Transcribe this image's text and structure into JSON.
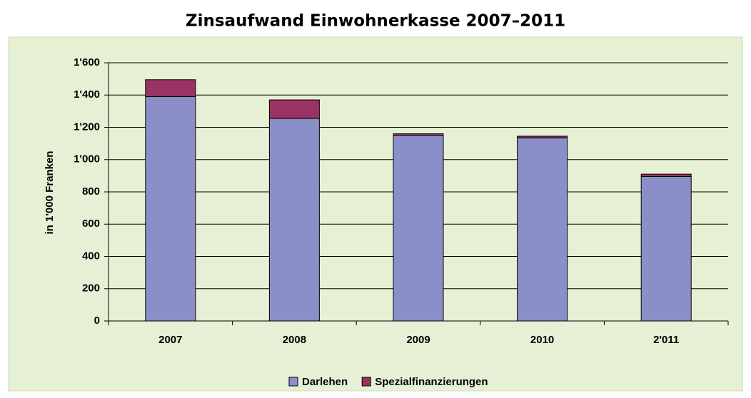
{
  "chart_data": {
    "type": "stacked_bar",
    "title": "Zinsaufwand Einwohnerkasse 2007–2011",
    "y_label": "in 1'000 Franken",
    "categories": [
      "2007",
      "2008",
      "2009",
      "2010",
      "2'011"
    ],
    "series": [
      {
        "name": "Darlehen",
        "color": "#8b8fc8",
        "values": [
          1390,
          1255,
          1150,
          1135,
          895
        ]
      },
      {
        "name": "Spezialfinanzierungen",
        "color": "#993366",
        "values": [
          105,
          115,
          10,
          10,
          15
        ]
      }
    ],
    "ylim": [
      0,
      1600
    ],
    "yticks": [
      0,
      200,
      400,
      600,
      800,
      {
        "value": 1000,
        "label": "1'000"
      },
      {
        "value": 1200,
        "label": "1'200"
      },
      {
        "value": 1400,
        "label": "1'400"
      },
      {
        "value": 1600,
        "label": "1'600"
      }
    ],
    "grid": true,
    "legend": "bottom"
  }
}
